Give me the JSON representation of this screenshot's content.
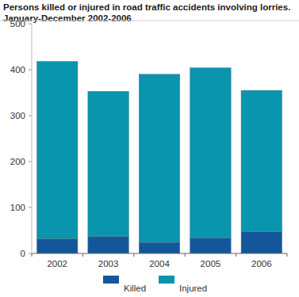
{
  "chart_data": {
    "type": "bar",
    "stacked": true,
    "title": "Persons killed or injured in road traffic accidents involving lorries. January-December 2002-2006",
    "categories": [
      "2002",
      "2003",
      "2004",
      "2005",
      "2006"
    ],
    "series": [
      {
        "name": "Killed",
        "color": "#14569a",
        "values": [
          32,
          37,
          24,
          34,
          47
        ]
      },
      {
        "name": "Injured",
        "color": "#0a95ae",
        "values": [
          386,
          316,
          366,
          370,
          308
        ]
      }
    ],
    "ylim": [
      0,
      500
    ],
    "yticks": [
      0,
      100,
      200,
      300,
      400,
      500
    ],
    "grid": false,
    "legend": "bottom"
  }
}
